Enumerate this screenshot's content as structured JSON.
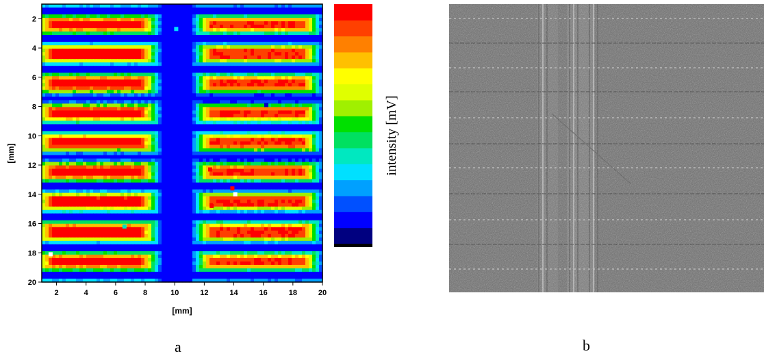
{
  "figure": {
    "panel_a_letter": "a",
    "panel_b_letter": "b"
  },
  "chart_data": {
    "type": "heatmap",
    "title": "",
    "xlabel": "[mm]",
    "ylabel": "[mm]",
    "colorbar_label": "intensity [mV]",
    "xlim": [
      1,
      20
    ],
    "ylim": [
      20,
      1
    ],
    "x_ticks": [
      2,
      4,
      6,
      8,
      10,
      12,
      14,
      16,
      18,
      20
    ],
    "y_ticks": [
      2,
      4,
      6,
      8,
      10,
      12,
      14,
      16,
      18,
      20
    ],
    "y_inverted": true,
    "colormap": [
      "#000080",
      "#0000ff",
      "#0050ff",
      "#00a0ff",
      "#00e0ff",
      "#00e8c0",
      "#00e060",
      "#00e000",
      "#a0f000",
      "#e0ff00",
      "#ffff00",
      "#ffc000",
      "#ff8000",
      "#ff4000",
      "#ff0000"
    ],
    "gap_band_x": [
      9.0,
      11.2
    ],
    "stripe_centers_y": [
      1.4,
      3.4,
      5.4,
      7.45,
      9.45,
      11.45,
      13.5,
      15.5,
      17.6,
      19.6
    ],
    "stripe_half_height_mm": 0.65,
    "hot_spots": [
      {
        "x": 14.1,
        "y": 14.0,
        "color": "#ffffff"
      },
      {
        "x": 13.9,
        "y": 13.6,
        "color": "#ff0000"
      },
      {
        "x": 12.4,
        "y": 12.3,
        "color": "#ff0000"
      },
      {
        "x": 16.2,
        "y": 7.9,
        "color": "#0000c0"
      },
      {
        "x": 1.6,
        "y": 18.1,
        "color": "#ffffff"
      },
      {
        "x": 6.6,
        "y": 16.2,
        "color": "#00e0c0"
      },
      {
        "x": 10.1,
        "y": 2.7,
        "color": "#00e0ff"
      },
      {
        "x": 12.5,
        "y": 14.8,
        "color": "#ff0000"
      }
    ]
  },
  "micrograph": {
    "background": "#6a6a6a",
    "vertical_bands_x": [
      793,
      838,
      867
    ],
    "horizontal_lines_y": [
      27,
      63,
      99,
      134,
      172,
      210,
      245,
      283,
      321,
      357,
      393
    ]
  }
}
